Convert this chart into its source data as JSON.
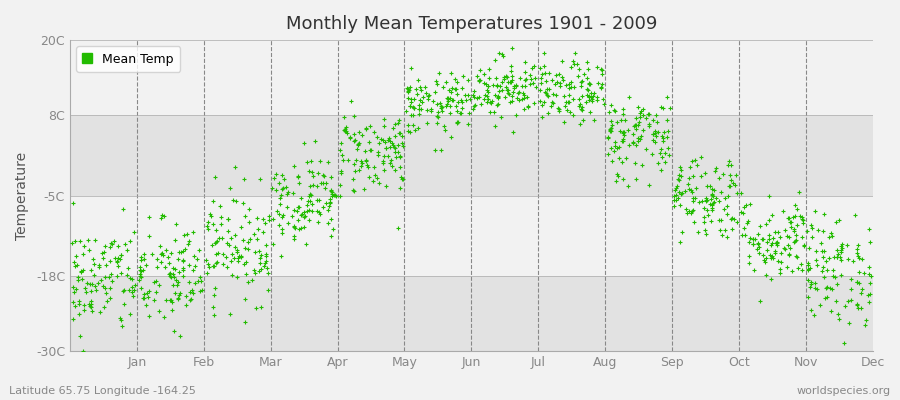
{
  "title": "Monthly Mean Temperatures 1901 - 2009",
  "ylabel": "Temperature",
  "xlabel_bottom_left": "Latitude 65.75 Longitude -164.25",
  "xlabel_bottom_right": "worldspecies.org",
  "legend_label": "Mean Temp",
  "dot_color": "#22bb00",
  "background_color": "#f2f2f2",
  "plot_bg_light": "#f2f2f2",
  "plot_bg_dark": "#e2e2e2",
  "ylim": [
    -30,
    20
  ],
  "yticks": [
    -30,
    -18,
    -5,
    8,
    20
  ],
  "ytick_labels": [
    "-30C",
    "-18C",
    "-5C",
    "8C",
    "20C"
  ],
  "months": [
    "Jan",
    "Feb",
    "Mar",
    "Apr",
    "May",
    "Jun",
    "Jul",
    "Aug",
    "Sep",
    "Oct",
    "Nov",
    "Dec"
  ],
  "month_means": [
    -18.5,
    -18.0,
    -13.0,
    -5.5,
    2.0,
    9.5,
    12.5,
    11.5,
    4.5,
    -5.0,
    -12.0,
    -17.0
  ],
  "month_stds": [
    4.5,
    4.5,
    4.5,
    3.5,
    3.5,
    2.5,
    2.5,
    2.5,
    3.5,
    3.5,
    3.5,
    4.5
  ],
  "n_years": 109,
  "seed": 42
}
